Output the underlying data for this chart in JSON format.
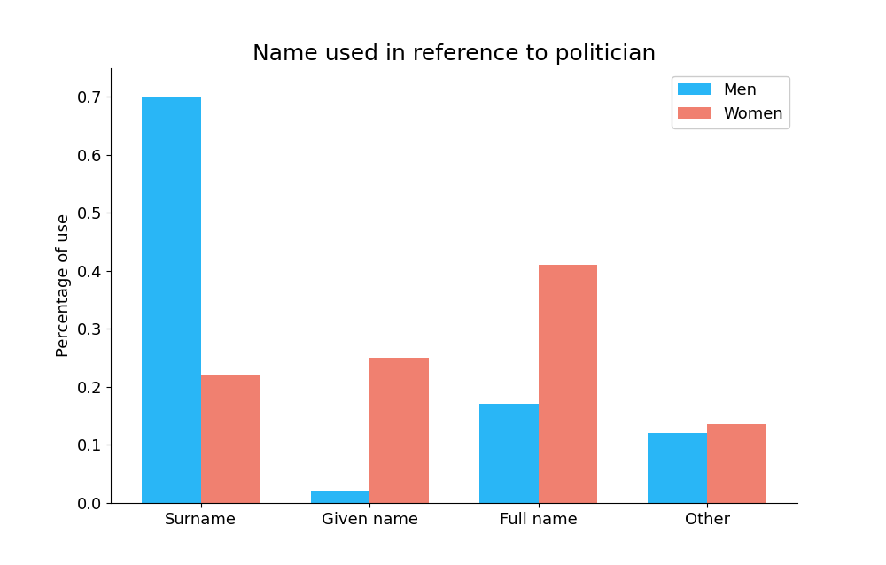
{
  "title": "Name used in reference to politician",
  "categories": [
    "Surname",
    "Given name",
    "Full name",
    "Other"
  ],
  "men_values": [
    0.7,
    0.02,
    0.17,
    0.12
  ],
  "women_values": [
    0.22,
    0.25,
    0.41,
    0.135
  ],
  "men_color": "#29b6f6",
  "women_color": "#f08070",
  "ylabel": "Percentage of use",
  "ylim": [
    0.0,
    0.75
  ],
  "legend_labels": [
    "Men",
    "Women"
  ],
  "bar_width": 0.35,
  "title_fontsize": 18,
  "axis_label_fontsize": 13,
  "tick_fontsize": 13,
  "legend_fontsize": 13,
  "yticks": [
    0.0,
    0.1,
    0.2,
    0.3,
    0.4,
    0.5,
    0.6,
    0.7
  ]
}
